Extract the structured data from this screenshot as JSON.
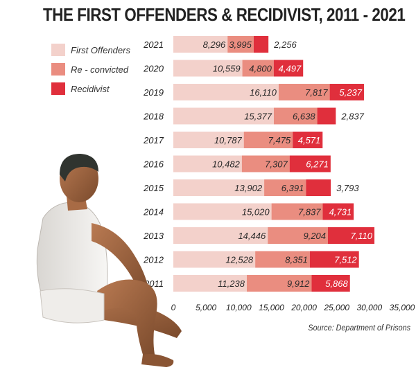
{
  "title": "THE FIRST OFFENDERS & RECIDIVIST, 2011 - 2021",
  "source": "Source: Department of Prisons",
  "colors": {
    "first": "#f3d1cb",
    "reconvicted": "#ea8d80",
    "recidivist": "#e02f3c"
  },
  "chart_data": {
    "type": "bar",
    "orientation": "horizontal",
    "stacked": true,
    "categories": [
      "2021",
      "2020",
      "2019",
      "2018",
      "2017",
      "2016",
      "2015",
      "2014",
      "2013",
      "2012",
      "2011"
    ],
    "series": [
      {
        "name": "First Offenders",
        "values": [
          8296,
          10559,
          16110,
          15377,
          10787,
          10482,
          13902,
          15020,
          14446,
          12528,
          11238
        ]
      },
      {
        "name": "Re - convicted",
        "values": [
          3995,
          4800,
          7817,
          6638,
          7475,
          7307,
          6391,
          7837,
          9204,
          8351,
          9912
        ]
      },
      {
        "name": "Recidivist",
        "values": [
          2256,
          4497,
          5237,
          2837,
          4571,
          6271,
          3793,
          4731,
          7110,
          7512,
          5868
        ]
      }
    ],
    "labels": [
      [
        "8,296",
        "3,995",
        "2,256"
      ],
      [
        "10,559",
        "4,800",
        "4,497"
      ],
      [
        "16,110",
        "7,817",
        "5,237"
      ],
      [
        "15,377",
        "6,638",
        "2,837"
      ],
      [
        "10,787",
        "7,475",
        "4,571"
      ],
      [
        "10,482",
        "7,307",
        "6,271"
      ],
      [
        "13,902",
        "6,391",
        "3,793"
      ],
      [
        "15,020",
        "7,837",
        "4,731"
      ],
      [
        "14,446",
        "9,204",
        "7,110"
      ],
      [
        "12,528",
        "8,351",
        "7,512"
      ],
      [
        "11,238",
        "9,912",
        "5,868"
      ]
    ],
    "xticks": [
      "0",
      "5,000",
      "10,000",
      "15,000",
      "20,000",
      "25,000",
      "30,000",
      "35,000"
    ],
    "xlim": [
      0,
      35000
    ],
    "legend_position": "top-left",
    "grid": false
  }
}
